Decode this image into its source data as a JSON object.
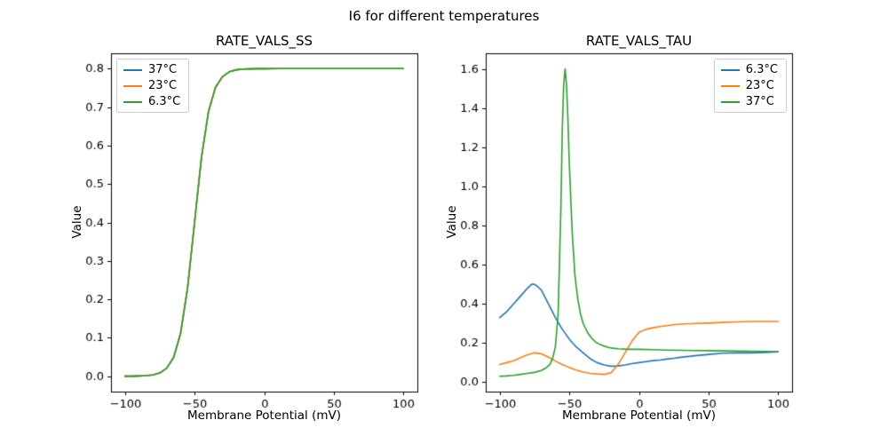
{
  "figure": {
    "title": "I6 for different temperatures"
  },
  "palette": {
    "C0": "#1f77b4",
    "C1": "#ff7f0e",
    "C2": "#2ca02c"
  },
  "chart_data": [
    {
      "type": "line",
      "title": "RATE_VALS_SS",
      "xlabel": "Membrane Potential (mV)",
      "ylabel": "Value",
      "xlim": [
        -110,
        110
      ],
      "ylim": [
        -0.04,
        0.84
      ],
      "xticks": [
        -100,
        -50,
        0,
        50,
        100
      ],
      "yticks": [
        0.0,
        0.1,
        0.2,
        0.3,
        0.4,
        0.5,
        0.6,
        0.7,
        0.8
      ],
      "grid": false,
      "legend_loc": "upper left",
      "overlap_note": "All three temperature curves coincide (sigmoid from 0 to 0.8, midpoint near -50 mV); topmost drawn curve is green",
      "x": [
        -100,
        -95,
        -90,
        -85,
        -80,
        -75,
        -70,
        -65,
        -60,
        -55,
        -50,
        -45,
        -40,
        -35,
        -30,
        -25,
        -20,
        -15,
        -10,
        -5,
        0,
        10,
        20,
        30,
        40,
        50,
        60,
        70,
        80,
        90,
        100
      ],
      "series": [
        {
          "name": "37°C",
          "color": "C0",
          "values": [
            0.0001,
            0.0002,
            0.0006,
            0.0014,
            0.0034,
            0.0084,
            0.021,
            0.049,
            0.112,
            0.23,
            0.4,
            0.57,
            0.688,
            0.751,
            0.779,
            0.792,
            0.797,
            0.799,
            0.7994,
            0.7998,
            0.7999,
            0.8,
            0.8,
            0.8,
            0.8,
            0.8,
            0.8,
            0.8,
            0.8,
            0.8,
            0.8
          ]
        },
        {
          "name": "23°C",
          "color": "C1",
          "values": [
            0.0001,
            0.0002,
            0.0006,
            0.0014,
            0.0034,
            0.0084,
            0.021,
            0.049,
            0.112,
            0.23,
            0.4,
            0.57,
            0.688,
            0.751,
            0.779,
            0.792,
            0.797,
            0.799,
            0.7994,
            0.7998,
            0.7999,
            0.8,
            0.8,
            0.8,
            0.8,
            0.8,
            0.8,
            0.8,
            0.8,
            0.8,
            0.8
          ]
        },
        {
          "name": "6.3°C",
          "color": "C2",
          "values": [
            0.0001,
            0.0002,
            0.0006,
            0.0014,
            0.0034,
            0.0084,
            0.021,
            0.049,
            0.112,
            0.23,
            0.4,
            0.57,
            0.688,
            0.751,
            0.779,
            0.792,
            0.797,
            0.799,
            0.7994,
            0.7998,
            0.7999,
            0.8,
            0.8,
            0.8,
            0.8,
            0.8,
            0.8,
            0.8,
            0.8,
            0.8,
            0.8
          ]
        }
      ]
    },
    {
      "type": "line",
      "title": "RATE_VALS_TAU",
      "xlabel": "Membrane Potential (mV)",
      "ylabel": "Value",
      "xlim": [
        -110,
        110
      ],
      "ylim": [
        -0.048,
        1.68
      ],
      "xticks": [
        -100,
        -50,
        0,
        50,
        100
      ],
      "yticks": [
        0.0,
        0.2,
        0.4,
        0.6,
        0.8,
        1.0,
        1.2,
        1.4,
        1.6
      ],
      "grid": false,
      "legend_loc": "upper right",
      "series": [
        {
          "name": "6.3°C",
          "color": "C0",
          "x": [
            -100,
            -95,
            -90,
            -85,
            -80,
            -77,
            -75,
            -73,
            -70,
            -65,
            -60,
            -55,
            -50,
            -45,
            -40,
            -35,
            -30,
            -25,
            -20,
            -15,
            -10,
            -5,
            0,
            5,
            10,
            15,
            20,
            25,
            30,
            40,
            50,
            60,
            70,
            80,
            90,
            100
          ],
          "values": [
            0.33,
            0.36,
            0.4,
            0.44,
            0.48,
            0.5,
            0.5,
            0.49,
            0.47,
            0.4,
            0.33,
            0.27,
            0.22,
            0.18,
            0.15,
            0.12,
            0.1,
            0.088,
            0.082,
            0.083,
            0.088,
            0.095,
            0.1,
            0.105,
            0.11,
            0.113,
            0.118,
            0.122,
            0.127,
            0.135,
            0.142,
            0.148,
            0.15,
            0.15,
            0.152,
            0.155
          ]
        },
        {
          "name": "23°C",
          "color": "C1",
          "x": [
            -100,
            -95,
            -90,
            -85,
            -80,
            -75,
            -70,
            -65,
            -60,
            -55,
            -50,
            -45,
            -40,
            -35,
            -30,
            -25,
            -20,
            -15,
            -10,
            -5,
            0,
            5,
            10,
            15,
            20,
            25,
            30,
            40,
            50,
            60,
            70,
            80,
            90,
            100
          ],
          "values": [
            0.09,
            0.1,
            0.11,
            0.125,
            0.14,
            0.15,
            0.145,
            0.128,
            0.108,
            0.09,
            0.075,
            0.062,
            0.052,
            0.045,
            0.042,
            0.04,
            0.048,
            0.09,
            0.15,
            0.21,
            0.255,
            0.27,
            0.278,
            0.284,
            0.289,
            0.293,
            0.297,
            0.3,
            0.302,
            0.305,
            0.308,
            0.31,
            0.31,
            0.31
          ]
        },
        {
          "name": "37°C",
          "color": "C2",
          "x": [
            -100,
            -95,
            -90,
            -85,
            -80,
            -75,
            -70,
            -67,
            -64,
            -62,
            -60,
            -58,
            -56,
            -55,
            -54,
            -53,
            -52,
            -51,
            -50,
            -48,
            -46,
            -44,
            -42,
            -40,
            -37,
            -34,
            -31,
            -28,
            -25,
            -22,
            -20,
            -15,
            -10,
            -5,
            0,
            10,
            20,
            30,
            40,
            50,
            60,
            70,
            80,
            90,
            100
          ],
          "values": [
            0.03,
            0.032,
            0.035,
            0.04,
            0.045,
            0.05,
            0.06,
            0.072,
            0.09,
            0.12,
            0.18,
            0.35,
            0.9,
            1.3,
            1.52,
            1.6,
            1.52,
            1.35,
            1.12,
            0.78,
            0.55,
            0.43,
            0.35,
            0.3,
            0.255,
            0.225,
            0.205,
            0.193,
            0.185,
            0.178,
            0.175,
            0.171,
            0.169,
            0.168,
            0.168,
            0.166,
            0.164,
            0.163,
            0.162,
            0.161,
            0.16,
            0.159,
            0.158,
            0.157,
            0.156
          ]
        }
      ]
    }
  ]
}
